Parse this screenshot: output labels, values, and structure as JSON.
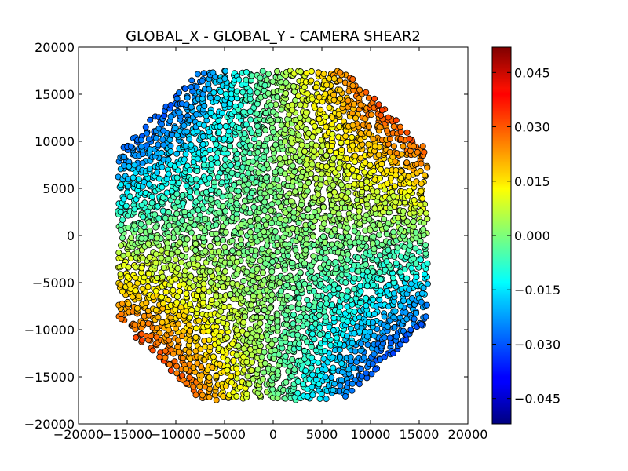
{
  "chart_data": {
    "type": "scatter",
    "title": "GLOBAL_X - GLOBAL_Y - CAMERA SHEAR2",
    "xlabel": "",
    "ylabel": "",
    "xlim": [
      -20000,
      20000
    ],
    "ylim": [
      -20000,
      20000
    ],
    "xticks": [
      -20000,
      -15000,
      -10000,
      -5000,
      0,
      5000,
      10000,
      15000,
      20000
    ],
    "yticks": [
      -20000,
      -15000,
      -10000,
      -5000,
      0,
      5000,
      10000,
      15000,
      20000
    ],
    "xtick_labels": [
      "−20000",
      "−15000",
      "−10000",
      "−5000",
      "0",
      "5000",
      "10000",
      "15000",
      "20000"
    ],
    "ytick_labels": [
      "−20000",
      "−15000",
      "−10000",
      "−5000",
      "0",
      "5000",
      "10000",
      "15000",
      "20000"
    ],
    "grid": false,
    "colormap": "jet",
    "marker_edge_color": "#000000",
    "field": {
      "shape": "octagon-like focal plane",
      "x_range": [
        -16000,
        16000
      ],
      "y_range": [
        -17500,
        17500
      ],
      "corner_cut": 9000
    },
    "color_model": {
      "description": "shear2 ≈ k * x * y",
      "k": 2e-10,
      "clip": [
        -0.052,
        0.052
      ]
    },
    "colorbar": {
      "vmin": -0.052,
      "vmax": 0.052,
      "ticks": [
        0.045,
        0.03,
        0.015,
        0.0,
        -0.015,
        -0.03,
        -0.045
      ],
      "tick_labels": [
        "0.045",
        "0.030",
        "0.015",
        "0.000",
        "−0.015",
        "−0.030",
        "−0.045"
      ]
    }
  }
}
